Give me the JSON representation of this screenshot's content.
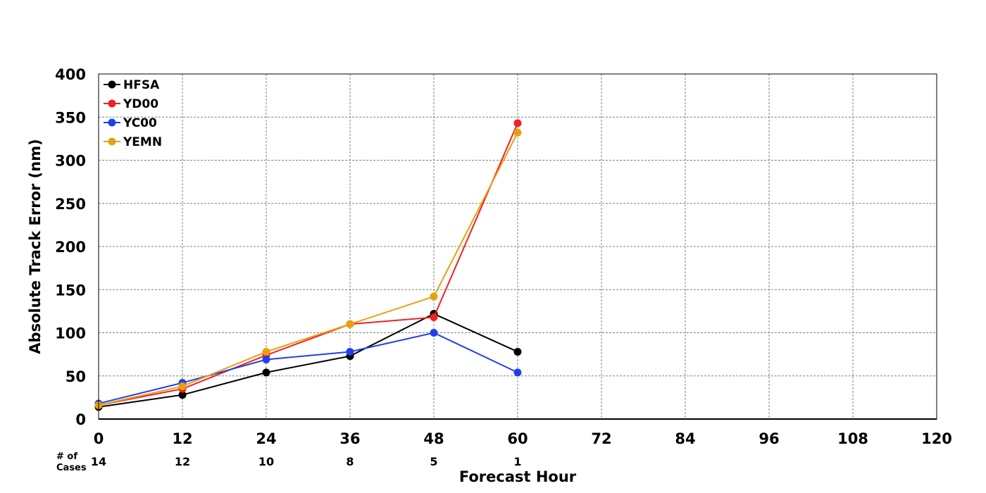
{
  "chart_data": {
    "type": "line",
    "title": "",
    "xlabel": "Forecast Hour",
    "ylabel": "Absolute Track Error (nm)",
    "xlim": [
      0,
      120
    ],
    "ylim": [
      0,
      400
    ],
    "xticks": [
      0,
      12,
      24,
      36,
      48,
      60,
      72,
      84,
      96,
      108,
      120
    ],
    "yticks": [
      0,
      50,
      100,
      150,
      200,
      250,
      300,
      350,
      400
    ],
    "grid": true,
    "legend_position": "top-left",
    "cases_label": [
      "# of",
      "Cases"
    ],
    "cases": [
      {
        "x": 0,
        "n": "14"
      },
      {
        "x": 12,
        "n": "12"
      },
      {
        "x": 24,
        "n": "10"
      },
      {
        "x": 36,
        "n": "8"
      },
      {
        "x": 48,
        "n": "5"
      },
      {
        "x": 60,
        "n": "1"
      }
    ],
    "x": [
      0,
      12,
      24,
      36,
      48,
      60
    ],
    "series": [
      {
        "name": "HFSA",
        "color": "#000000",
        "values": [
          14,
          28,
          54,
          73,
          122,
          78
        ]
      },
      {
        "name": "YD00",
        "color": "#ee2222",
        "values": [
          16,
          35,
          74,
          110,
          118,
          343
        ]
      },
      {
        "name": "YC00",
        "color": "#2040ee",
        "values": [
          18,
          42,
          69,
          78,
          100,
          54
        ]
      },
      {
        "name": "YEMN",
        "color": "#e8a010",
        "values": [
          16,
          38,
          78,
          110,
          142,
          332
        ]
      }
    ]
  }
}
